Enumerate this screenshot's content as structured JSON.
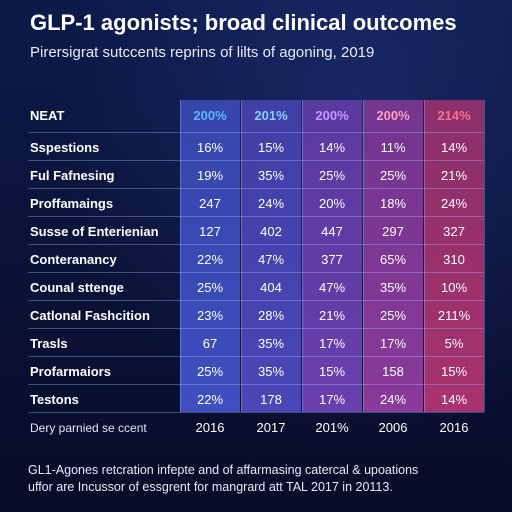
{
  "title": "GLP-1 agonists; broad clinical outcomes",
  "subtitle": "Pirersigrat sutccents reprins of lilts of agoning, 2019",
  "colors": {
    "col1": "#3e4fc0",
    "col2": "#4a47b8",
    "col3": "#6a3fae",
    "col4": "#8a3a9a",
    "col5": "#a8336f",
    "header_col1": "#5bb6ff",
    "header_col2": "#8ad0ff",
    "header_col3": "#c99aff",
    "header_col4": "#ff9fc0",
    "header_col5": "#ff6f8a"
  },
  "chart_data": {
    "type": "table",
    "corner_label": "NEAT",
    "columns": [
      "200%",
      "201%",
      "200%",
      "200%",
      "214%"
    ],
    "rows": [
      {
        "label": "Sspestions",
        "values": [
          "16%",
          "15%",
          "14%",
          "11%",
          "14%"
        ]
      },
      {
        "label": "Ful Fafnesing",
        "values": [
          "19%",
          "35%",
          "25%",
          "25%",
          "21%"
        ]
      },
      {
        "label": "Proffamaings",
        "values": [
          "247",
          "24%",
          "20%",
          "18%",
          "24%"
        ]
      },
      {
        "label": "Susse of Enterienian",
        "values": [
          "127",
          "402",
          "447",
          "297",
          "327"
        ]
      },
      {
        "label": "Conteranancy",
        "values": [
          "22%",
          "47%",
          "377",
          "65%",
          "310"
        ]
      },
      {
        "label": "Counal sttenge",
        "values": [
          "25%",
          "404",
          "47%",
          "35%",
          "10%"
        ]
      },
      {
        "label": "Catlonal Fashcition",
        "values": [
          "23%",
          "28%",
          "21%",
          "25%",
          "211%"
        ]
      },
      {
        "label": "Trasls",
        "values": [
          "67",
          "35%",
          "17%",
          "17%",
          "5%"
        ]
      },
      {
        "label": "Profarmaiors",
        "values": [
          "25%",
          "35%",
          "15%",
          "158",
          "15%"
        ]
      },
      {
        "label": "Testons",
        "values": [
          "22%",
          "178",
          "17%",
          "24%",
          "14%"
        ]
      }
    ],
    "footer_label": "Dery parnied se ccent",
    "footer_values": [
      "2016",
      "2017",
      "201%",
      "2006",
      "2016"
    ]
  },
  "note": {
    "line1": "GL1-Agones retcration infepte and of affarmasing catercal & upoations",
    "line2": "uffor are Incussor of essgrent for mangrard att TAL 2017 in 20113."
  }
}
